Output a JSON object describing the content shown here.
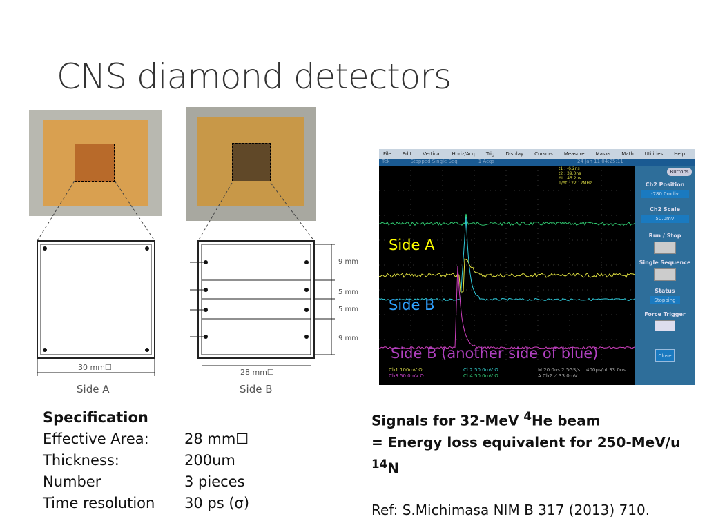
{
  "title": "CNS diamond detectors",
  "figure": {
    "side_a_label": "Side A",
    "side_b_label": "Side B",
    "dim_a": "30 mm☐",
    "dim_b": "28 mm☐",
    "dims_right": [
      "9 mm",
      "5 mm",
      "5 mm",
      "9 mm"
    ]
  },
  "scope": {
    "menu": [
      "File",
      "Edit",
      "Vertical",
      "Horiz/Acq",
      "Trig",
      "Display",
      "Cursors",
      "Measure",
      "Masks",
      "Math",
      "Utilities",
      "Help"
    ],
    "status": {
      "brand": "Tek",
      "state": "Stopped Single Seq",
      "acqs": "1 Acqs",
      "date": "24 Jan 11 04:25:11"
    },
    "cursors": [
      "t1 : -6.2ns",
      "t2 : 39.0ns",
      "Δt : 45.2ns",
      "1/Δt : 22.12MHz"
    ],
    "panel": {
      "buttons": "Buttons",
      "ch2_position": "Ch2 Position",
      "ch2_position_value": "-780.0mdiv",
      "ch2_scale": "Ch2 Scale",
      "ch2_scale_value": "50.0mV",
      "run_stop": "Run / Stop",
      "single_sequence": "Single Sequence",
      "status": "Status",
      "status_value": "Stopping",
      "force_trigger": "Force Trigger",
      "close": "Close"
    },
    "footer": {
      "ch1": "Ch1  100mV Ω",
      "ch3": "Ch3  50.0mV Ω",
      "ch2": "Ch2  50.0mV Ω",
      "ch4": "Ch4  50.0mV Ω",
      "timebase": "M 20.0ns 2.5GS/s",
      "trigger": "A Ch2 ⟋ 33.0mV",
      "record": "400ps/pt 33.0ns"
    },
    "annotations": {
      "side_a": "Side A",
      "side_b": "Side B",
      "side_b_other": "Side B (another side of blue)"
    },
    "colors": {
      "ch1": "#e0e040",
      "ch2": "#30c8d8",
      "ch3": "#d040c0",
      "ch4": "#30c870",
      "annotation_a": "#ffff00",
      "annotation_b": "#30a0ff",
      "annotation_other": "#b040c0"
    }
  },
  "spec": {
    "heading": "Specification",
    "rows": [
      {
        "label": "Effective Area:",
        "value": "28 mm☐"
      },
      {
        "label": "Thickness:",
        "value": "200um"
      },
      {
        "label": "Number",
        "value": "3 pieces"
      },
      {
        "label": "Time resolution",
        "value": "30 ps (σ)"
      }
    ]
  },
  "signals": {
    "line1_pre": "Signals for 32-MeV ",
    "line1_sup": "4",
    "line1_post": "He beam",
    "line2_pre": "= Energy loss equivalent for 250-MeV/u ",
    "line2_sup": "14",
    "line2_post": "N"
  },
  "ref": "Ref: S.Michimasa NIM B 317 (2013) 710."
}
